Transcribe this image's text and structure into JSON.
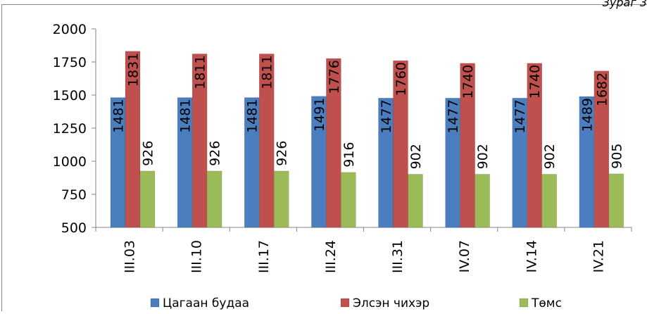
{
  "corner_label": "Зураг 3",
  "chart_data": {
    "type": "bar",
    "title": "",
    "xlabel": "",
    "ylabel": "",
    "ylim": [
      500,
      2000
    ],
    "yticks": [
      500,
      750,
      1000,
      1250,
      1500,
      1750,
      2000
    ],
    "categories": [
      "III.03",
      "III.10",
      "III.17",
      "III.24",
      "III.31",
      "IV.07",
      "IV.14",
      "IV.21"
    ],
    "series": [
      {
        "name": "Цагаан будаа",
        "color": "#4a7ebf",
        "values": [
          1481,
          1481,
          1481,
          1491,
          1477,
          1477,
          1477,
          1489
        ]
      },
      {
        "name": "Элсэн чихэр",
        "color": "#c0504d",
        "values": [
          1831,
          1811,
          1811,
          1776,
          1760,
          1740,
          1740,
          1682
        ]
      },
      {
        "name": "Төмс",
        "color": "#9bbb59",
        "values": [
          926,
          926,
          926,
          916,
          902,
          902,
          902,
          905
        ]
      }
    ],
    "data_labels": true,
    "grid": false,
    "legend": "bottom"
  }
}
